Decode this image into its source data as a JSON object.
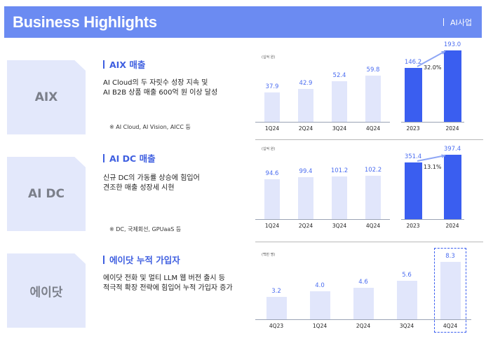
{
  "header": {
    "title": "Business Highlights",
    "tag": "AI사업"
  },
  "sections": [
    {
      "tile": "AIX",
      "title": "AIX 매출",
      "desc": [
        "AI Cloud의 두 자릿수 성장 지속 및",
        "AI B2B 상품 매출 600억 원 이상 달성"
      ],
      "note": "※ AI Cloud, AI Vision, AICC 등",
      "unit": "(십억 원)",
      "quarters": [
        "1Q24",
        "2Q24",
        "3Q24",
        "4Q24"
      ],
      "quarter_values": [
        "37.9",
        "42.9",
        "52.4",
        "59.8"
      ],
      "years": [
        "2023",
        "2024"
      ],
      "year_values": [
        "146.2",
        "193.0"
      ],
      "growth": "32.0%"
    },
    {
      "tile": "AI DC",
      "title": "AI DC 매출",
      "desc": [
        "신규 DC의 가동률 상승에 힘입어",
        "견조한 매출 성장세 시현"
      ],
      "note": "※ DC, 국제회선, GPUaaS 등",
      "unit": "(십억 원)",
      "quarters": [
        "1Q24",
        "2Q24",
        "3Q24",
        "4Q24"
      ],
      "quarter_values": [
        "94.6",
        "99.4",
        "101.2",
        "102.2"
      ],
      "years": [
        "2023",
        "2024"
      ],
      "year_values": [
        "351.4",
        "397.4"
      ],
      "growth": "13.1%"
    },
    {
      "tile": "에이닷",
      "title": "에이닷 누적 가입자",
      "desc": [
        "에이닷 전화 및 멀티 LLM 웹 버전 출시 등",
        "적극적 확장 전략에 힘입어 누적 가입자 증가"
      ],
      "unit": "(백만 명)",
      "quarters": [
        "4Q23",
        "1Q24",
        "2Q24",
        "3Q24",
        "4Q24"
      ],
      "quarter_values": [
        "3.2",
        "4.0",
        "4.6",
        "5.6",
        "8.3"
      ]
    }
  ],
  "chart_data": [
    {
      "type": "bar",
      "title": "AIX 매출",
      "ylabel": "(십억 원)",
      "categories": [
        "1Q24",
        "2Q24",
        "3Q24",
        "4Q24"
      ],
      "values": [
        37.9,
        42.9,
        52.4,
        59.8
      ]
    },
    {
      "type": "bar",
      "title": "AIX 매출",
      "ylabel": "(십억 원)",
      "categories": [
        "2023",
        "2024"
      ],
      "values": [
        146.2,
        193.0
      ],
      "annotation": "32.0%"
    },
    {
      "type": "bar",
      "title": "AI DC 매출",
      "ylabel": "(십억 원)",
      "categories": [
        "1Q24",
        "2Q24",
        "3Q24",
        "4Q24"
      ],
      "values": [
        94.6,
        99.4,
        101.2,
        102.2
      ]
    },
    {
      "type": "bar",
      "title": "AI DC 매출",
      "ylabel": "(십억 원)",
      "categories": [
        "2023",
        "2024"
      ],
      "values": [
        351.4,
        397.4
      ],
      "annotation": "13.1%"
    },
    {
      "type": "bar",
      "title": "에이닷 누적 가입자",
      "ylabel": "(백만 명)",
      "categories": [
        "4Q23",
        "1Q24",
        "2Q24",
        "3Q24",
        "4Q24"
      ],
      "values": [
        3.2,
        4.0,
        4.6,
        5.6,
        8.3
      ]
    }
  ],
  "colors": {
    "header": "#6b8bf2",
    "accent": "#3a5ef0",
    "bar_light": "#e1e6fb",
    "tile": "#e3e8fb"
  }
}
